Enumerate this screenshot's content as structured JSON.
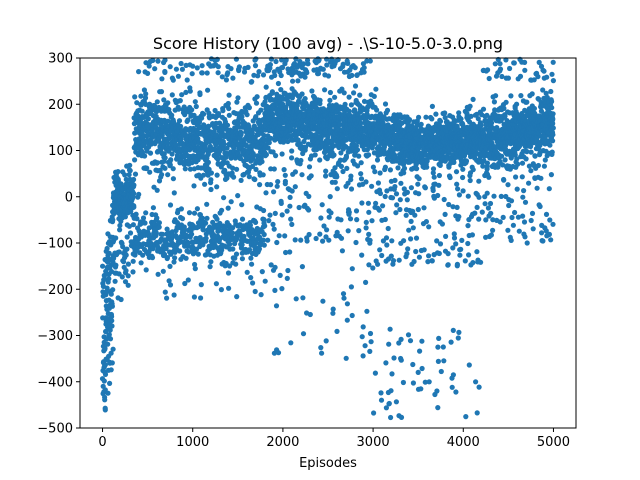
{
  "chart_data": {
    "type": "scatter",
    "title": "Score History (100 avg) - .\\S-10-5.0-3.0.png",
    "xlabel": "Episodes",
    "ylabel": "",
    "xlim": [
      -250,
      5250
    ],
    "ylim": [
      -500,
      300
    ],
    "x_ticks": [
      0,
      1000,
      2000,
      3000,
      4000,
      5000
    ],
    "y_ticks": [
      -500,
      -400,
      -300,
      -200,
      -100,
      0,
      100,
      200,
      300
    ],
    "marker_color": "#1f77b4",
    "grid": false,
    "legend": "none",
    "description_of_pattern": {
      "point_count": 5000,
      "episode_range": [
        0,
        4999
      ],
      "regions": [
        {
          "episodes": [
            0,
            120
          ],
          "score_range": [
            -500,
            -150
          ]
        },
        {
          "episodes": [
            100,
            350
          ],
          "score_range": [
            -100,
            50
          ],
          "center": 0
        },
        {
          "episodes": [
            350,
            1800
          ],
          "upper_band_center": 130,
          "lower_band_center": -90
        },
        {
          "episodes": [
            1800,
            3000
          ],
          "upper_band_center": 160
        },
        {
          "episodes": [
            3000,
            4200
          ],
          "upper_band_center": 120
        },
        {
          "episodes": [
            4200,
            5000
          ],
          "upper_band_center": 160
        }
      ]
    }
  }
}
